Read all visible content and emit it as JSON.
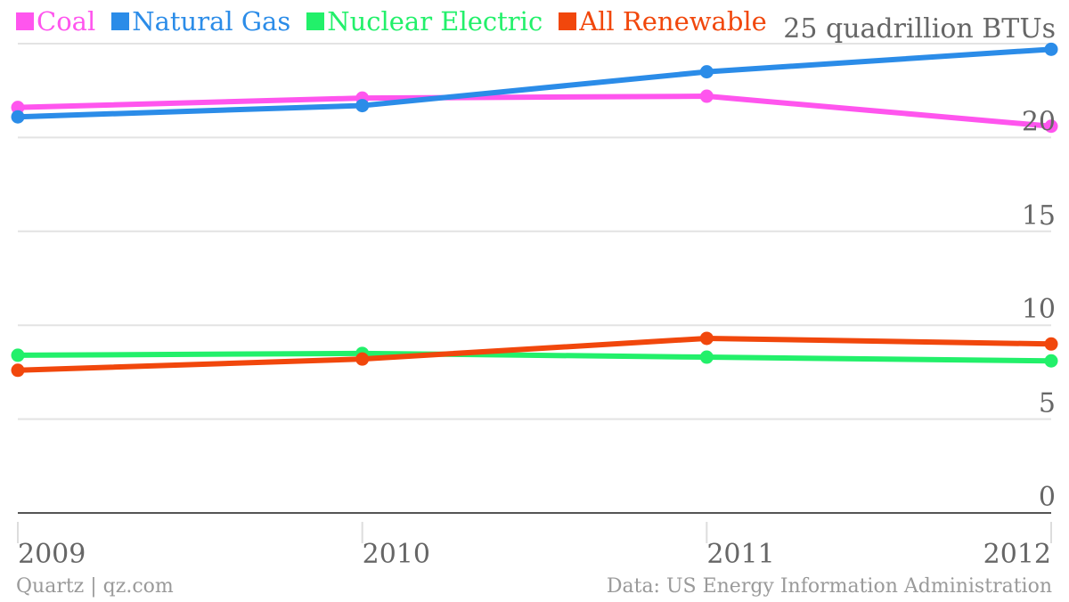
{
  "chart_data": {
    "type": "line",
    "title": "",
    "xlabel": "",
    "ylabel": "",
    "unit_label": "25 quadrillion BTUs",
    "categories": [
      "2009",
      "2010",
      "2011",
      "2012"
    ],
    "y_ticks": [
      "0",
      "5",
      "10",
      "15",
      "20"
    ],
    "ylim": [
      0,
      25
    ],
    "grid": true,
    "legend_position": "top-left",
    "series": [
      {
        "name": "Coal",
        "color": "#ff55ee",
        "values": [
          21.6,
          22.1,
          22.2,
          20.6
        ]
      },
      {
        "name": "Natural Gas",
        "color": "#2b8ce8",
        "values": [
          21.1,
          21.7,
          23.5,
          24.7
        ]
      },
      {
        "name": "Nuclear Electric",
        "color": "#22f06a",
        "values": [
          8.4,
          8.5,
          8.3,
          8.1
        ]
      },
      {
        "name": "All Renewable",
        "color": "#f1470c",
        "values": [
          7.6,
          8.2,
          9.3,
          9.0
        ]
      }
    ]
  },
  "footer": {
    "source_left": "Quartz | qz.com",
    "source_right": "Data: US Energy Information Administration"
  }
}
